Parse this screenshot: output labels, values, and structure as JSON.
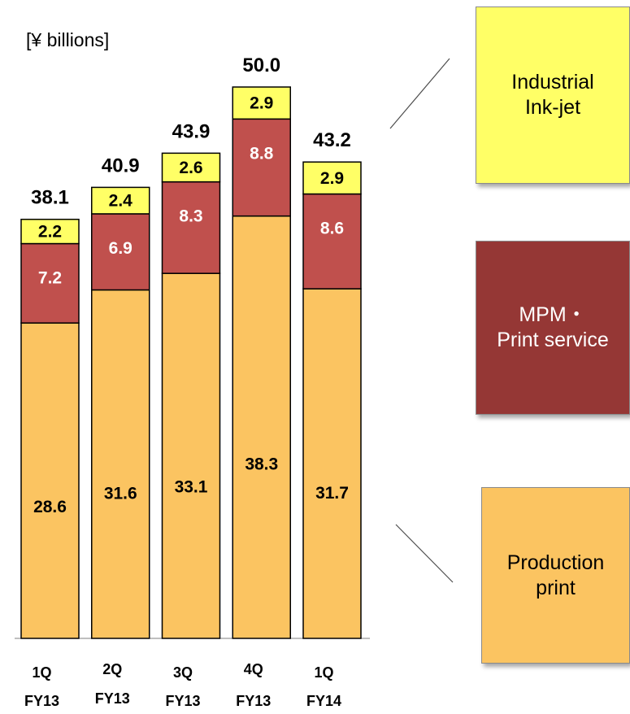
{
  "unit_label": "[¥ billions]",
  "chart_data": {
    "type": "bar",
    "stacked": true,
    "categories": [
      {
        "line1": "1Q",
        "line2": "FY13"
      },
      {
        "line1": "2Q",
        "line2": "FY13"
      },
      {
        "line1": "3Q",
        "line2": "FY13"
      },
      {
        "line1": "4Q",
        "line2": "FY13"
      },
      {
        "line1": "1Q",
        "line2": "FY14"
      }
    ],
    "series": [
      {
        "name": "Production print",
        "values": [
          "28.6",
          "31.6",
          "33.1",
          "38.3",
          "31.7"
        ],
        "color": "#fbc461",
        "label_color": "#000000"
      },
      {
        "name": "MPM・Print service",
        "values": [
          "7.2",
          "6.9",
          "8.3",
          "8.8",
          "8.6"
        ],
        "color": "#c0504d",
        "label_color": "#ffffff"
      },
      {
        "name": "Industrial Ink-jet",
        "values": [
          "2.2",
          "2.4",
          "2.6",
          "2.9",
          "2.9"
        ],
        "color": "#ffff66",
        "label_color": "#000000"
      }
    ],
    "totals": [
      "38.1",
      "40.9",
      "43.9",
      "50.0",
      "43.2"
    ],
    "ylim": [
      0,
      50
    ],
    "grid": false,
    "legend_position": "right"
  },
  "legend": [
    {
      "lines": [
        "Industrial",
        "Ink-jet"
      ],
      "color": "#ffff66"
    },
    {
      "lines": [
        "MPM・",
        "Print service"
      ],
      "color": "#953735"
    },
    {
      "lines": [
        "Production",
        "print"
      ],
      "color": "#fbc461"
    }
  ]
}
